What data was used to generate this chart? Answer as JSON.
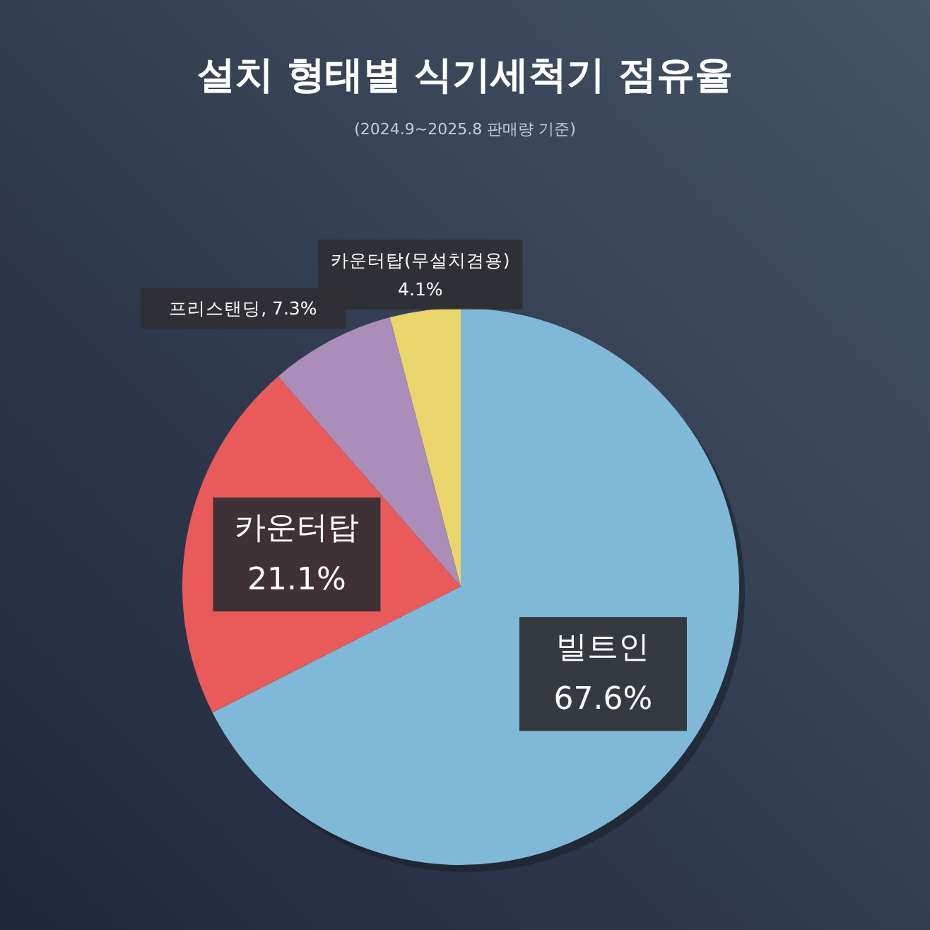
{
  "chart_data": {
    "type": "pie",
    "title": "설치 형태별 식기세척기 점유율",
    "annotations": [
      "(2024.9~2025.8 판매량 기준)"
    ],
    "categories": [
      "빌트인",
      "카운터탑",
      "프리스탠딩",
      "카운터탑(무설치겸용)"
    ],
    "values": [
      67.6,
      21.1,
      7.3,
      4.1
    ],
    "value_labels": [
      "67.6%",
      "21.1%",
      "7.3%",
      "4.1%"
    ],
    "colors": [
      "#80b9d8",
      "#e95a5a",
      "#aa8db8",
      "#e9d56c"
    ]
  }
}
